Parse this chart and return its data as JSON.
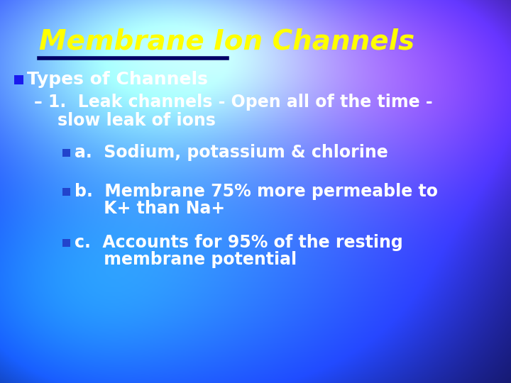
{
  "title": "Membrane Ion Channels",
  "title_color": "#FFFF00",
  "title_fontsize": 28,
  "underline_color": "#000066",
  "bullet1_text": "Types of Channels",
  "bullet1_color": "#FFFFFF",
  "bullet1_marker_color": "#1a1aee",
  "bullet1_fontsize": 18,
  "sub1_lines": [
    "– 1.  Leak channels - Open all of the time -",
    "    slow leak of ions"
  ],
  "sub1_color": "#FFFFFF",
  "sub1_fontsize": 17,
  "items": [
    {
      "lines": [
        "a.  Sodium, potassium & chlorine"
      ],
      "marker_color": "#2244cc"
    },
    {
      "lines": [
        "b.  Membrane 75% more permeable to",
        "     K+ than Na+"
      ],
      "marker_color": "#2244cc"
    },
    {
      "lines": [
        "c.  Accounts for 95% of the resting",
        "     membrane potential"
      ],
      "marker_color": "#2244cc"
    }
  ],
  "item_color": "#FFFFFF",
  "item_fontsize": 17,
  "fig_width": 7.2,
  "fig_height": 5.4,
  "dpi": 100
}
